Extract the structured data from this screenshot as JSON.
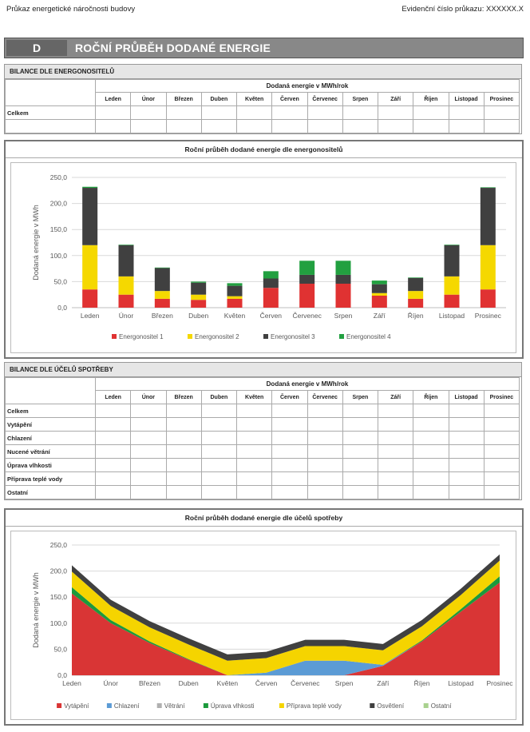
{
  "header": {
    "left": "Průkaz energetické náročnosti budovy",
    "right": "Evidenční číslo průkazu: XXXXXX.X"
  },
  "section": {
    "letter": "D",
    "title": "ROČNÍ PRŮBĚH DODANÉ ENERGIE"
  },
  "table1": {
    "caption": "BILANCE DLE ENERGONOSITELŮ",
    "unit_header": "Dodaná energie v MWh/rok",
    "rows": [
      "Celkem",
      ""
    ]
  },
  "table2": {
    "caption": "BILANCE DLE ÚČELŮ SPOTŘEBY",
    "unit_header": "Dodaná energie v MWh/rok",
    "rows": [
      "Celkem",
      "Vytápění",
      "Chlazení",
      "Nucené větrání",
      "Úprava vlhkosti",
      "Příprava teplé vody",
      "Ostatní"
    ]
  },
  "months": [
    "Leden",
    "Únor",
    "Březen",
    "Duben",
    "Květen",
    "Červen",
    "Červenec",
    "Srpen",
    "Září",
    "Říjen",
    "Listopad",
    "Prosinec"
  ],
  "chart_data": [
    {
      "type": "bar",
      "stacked": true,
      "title": "Roční průběh dodané energie dle energonositelů",
      "ylabel": "Dodaná energie v MWh",
      "ylim": [
        0,
        250
      ],
      "yticks": [
        "0,0",
        "50,0",
        "100,0",
        "150,0",
        "200,0",
        "250,0"
      ],
      "grid": true,
      "legend": "bottom",
      "categories": [
        "Leden",
        "Únor",
        "Březen",
        "Duben",
        "Květen",
        "Červen",
        "Červenec",
        "Srpen",
        "Září",
        "Říjen",
        "Listopad",
        "Prosinec"
      ],
      "series": [
        {
          "name": "Energonositel 1",
          "color": "#e03232",
          "values": [
            35,
            25,
            17,
            15,
            17,
            38,
            46,
            46,
            23,
            17,
            25,
            35
          ]
        },
        {
          "name": "Energonositel 2",
          "color": "#f5d800",
          "values": [
            85,
            35,
            15,
            10,
            5,
            0,
            0,
            0,
            5,
            15,
            35,
            85
          ]
        },
        {
          "name": "Energonositel 3",
          "color": "#404040",
          "values": [
            110,
            60,
            44,
            23,
            20,
            18,
            17,
            17,
            17,
            25,
            60,
            110
          ]
        },
        {
          "name": "Energonositel 4",
          "color": "#22a040",
          "values": [
            2,
            1,
            1,
            2,
            5,
            14,
            27,
            27,
            7,
            1,
            1,
            1
          ]
        }
      ]
    },
    {
      "type": "area",
      "stacked": true,
      "title": "Roční průběh dodané energie dle účelů spotřeby",
      "ylabel": "Dodaná energie v MWh",
      "ylim": [
        0,
        250
      ],
      "yticks": [
        "0,0",
        "50,0",
        "100,0",
        "150,0",
        "200,0",
        "250,0"
      ],
      "grid": true,
      "legend": "bottom",
      "categories": [
        "Leden",
        "Únor",
        "Březen",
        "Duben",
        "Květen",
        "Červen",
        "Červenec",
        "Srpen",
        "Září",
        "Říjen",
        "Listopad",
        "Prosinec"
      ],
      "series": [
        {
          "name": "Vytápění",
          "color": "#d93535",
          "values": [
            157,
            100,
            62,
            30,
            0,
            0,
            0,
            0,
            18,
            65,
            122,
            178
          ]
        },
        {
          "name": "Chlazení",
          "color": "#5b9bd5",
          "values": [
            0,
            0,
            0,
            0,
            0,
            5,
            28,
            28,
            2,
            0,
            0,
            0
          ]
        },
        {
          "name": "Větrání",
          "color": "#b0b0b0",
          "values": [
            0,
            0,
            0,
            0,
            0,
            0,
            0,
            0,
            0,
            0,
            0,
            0
          ]
        },
        {
          "name": "Úprava vlhkosti",
          "color": "#1c9a3c",
          "values": [
            12,
            6,
            3,
            1,
            0,
            0,
            0,
            0,
            0,
            2,
            5,
            12
          ]
        },
        {
          "name": "Příprava teplé vody",
          "color": "#f5d400",
          "values": [
            30,
            27,
            27,
            28,
            28,
            28,
            28,
            28,
            28,
            27,
            27,
            30
          ]
        },
        {
          "name": "Osvětlení",
          "color": "#404040",
          "values": [
            12,
            12,
            12,
            12,
            12,
            12,
            12,
            12,
            12,
            12,
            12,
            12
          ]
        },
        {
          "name": "Ostatní",
          "color": "#a9d18e",
          "values": [
            0,
            0,
            0,
            0,
            0,
            0,
            0,
            0,
            0,
            0,
            0,
            0
          ]
        }
      ]
    }
  ]
}
